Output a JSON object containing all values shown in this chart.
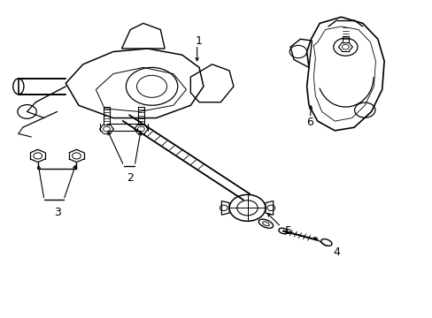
{
  "background_color": "#ffffff",
  "line_color": "#000000",
  "label_color": "#000000",
  "label_fontsize": 9,
  "figsize": [
    4.89,
    3.6
  ],
  "dpi": 100
}
